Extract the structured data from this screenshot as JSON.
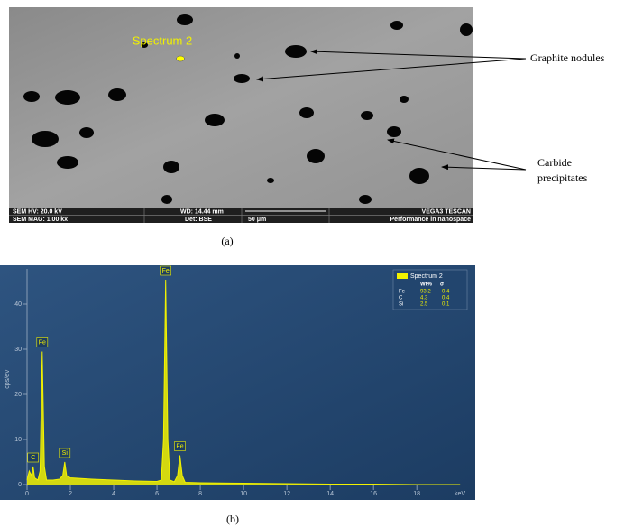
{
  "sem_image": {
    "spectrum_marker": "Spectrum 2",
    "info_bar": [
      "SEM HV: 20.0 kV",
      "WD: 14.44 mm",
      "VEGA3 TESCAN",
      "SEM MAG: 1.00 kx",
      "Det: BSE",
      "50 μm",
      "Performance in nanospace"
    ],
    "annotations": [
      "Graphite nodules",
      "Carbide",
      "precipitates"
    ],
    "caption": "(a)"
  },
  "chart_data": {
    "type": "line",
    "x": [
      0,
      0.1,
      0.2,
      0.28,
      0.35,
      0.5,
      0.6,
      0.7,
      0.8,
      0.9,
      1.0,
      1.2,
      1.5,
      1.65,
      1.74,
      1.83,
      2.0,
      3,
      4,
      5,
      6,
      6.2,
      6.3,
      6.4,
      6.5,
      6.6,
      6.8,
      6.95,
      7.06,
      7.17,
      7.3,
      8,
      10,
      12,
      14,
      16,
      18,
      20
    ],
    "series": [
      {
        "name": "Spectrum 2",
        "color": "#f2f200",
        "values": [
          1,
          3,
          2,
          4,
          1.5,
          1,
          3,
          29.5,
          4,
          1,
          1,
          1,
          1.2,
          2,
          5,
          2,
          1.5,
          1.2,
          1,
          0.8,
          0.7,
          1,
          10,
          45.4,
          10,
          1,
          0.6,
          2,
          6.5,
          2,
          0.5,
          0.4,
          0.3,
          0.2,
          0.1,
          0.1,
          0,
          0
        ]
      }
    ],
    "peak_labels": [
      {
        "label": "C",
        "x": 0.28
      },
      {
        "label": "Fe",
        "x": 0.7
      },
      {
        "label": "Si",
        "x": 1.74
      },
      {
        "label": "Fe",
        "x": 6.4
      },
      {
        "label": "Fe",
        "x": 7.06
      }
    ],
    "xlim": [
      0,
      20.7
    ],
    "ylim": [
      0,
      47.8
    ],
    "xticks": [
      0,
      2,
      4,
      6,
      8,
      10,
      12,
      14,
      16,
      18
    ],
    "yticks": [
      0,
      10,
      20,
      30,
      40
    ],
    "x_label": "keV",
    "y_label": "cps/eV",
    "legend_table": {
      "columns": [
        "Wt%",
        "σ"
      ],
      "rows": [
        [
          "Fe",
          93.2,
          0.4
        ],
        [
          "C",
          4.3,
          0.4
        ],
        [
          "Si",
          2.5,
          0.1
        ]
      ]
    },
    "caption": "(b)"
  }
}
